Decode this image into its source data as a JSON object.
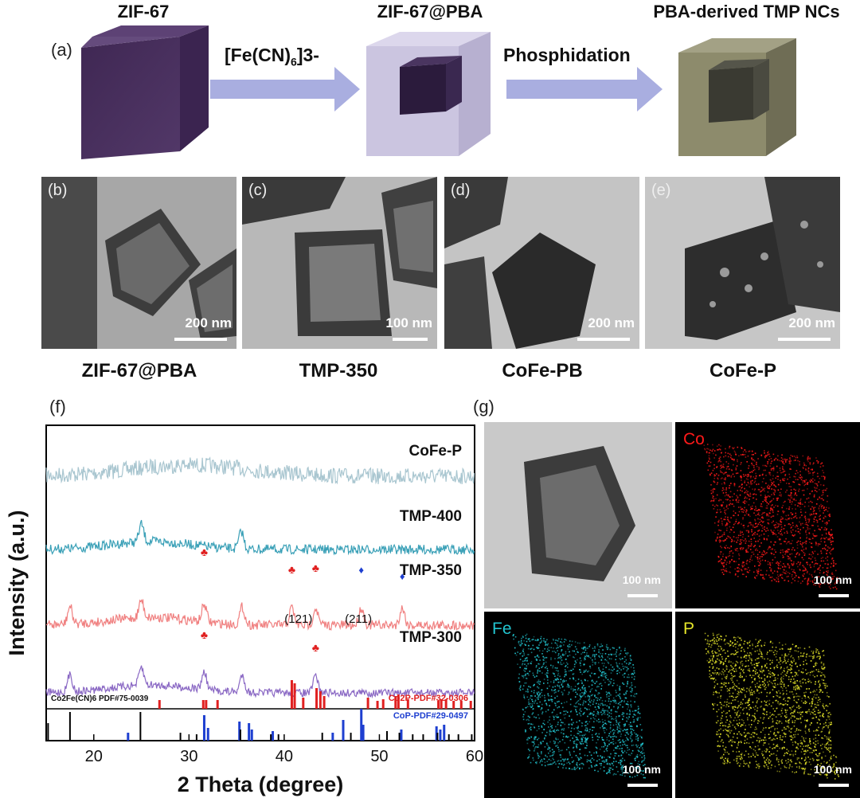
{
  "schematic": {
    "panel_label": "(a)",
    "titles": [
      "ZIF-67",
      "ZIF-67@PBA",
      "PBA-derived TMP NCs"
    ],
    "arrow1_label": "[Fe(CN)",
    "arrow1_sub": "6",
    "arrow1_sup": "]3-",
    "arrow2_label": "Phosphidation",
    "colors": {
      "zif": "#4a2f5f",
      "pba": "#c8c2de",
      "tmp": "#8d8b6c",
      "arrow": "#a9aee0"
    }
  },
  "tem_panels": [
    {
      "letter": "(b)",
      "scale": "200 nm",
      "caption": "ZIF-67@PBA"
    },
    {
      "letter": "(c)",
      "scale": "100 nm",
      "caption": "TMP-350"
    },
    {
      "letter": "(d)",
      "scale": "200 nm",
      "caption": "CoFe-PB"
    },
    {
      "letter": "(e)",
      "scale": "200 nm",
      "caption": "CoFe-P"
    }
  ],
  "xrd": {
    "panel_label": "(f)",
    "xlabel": "2 Theta (degree)",
    "ylabel": "Intensity (a.u.)",
    "xticks": [
      "20",
      "30",
      "40",
      "50",
      "60"
    ],
    "traces": [
      {
        "name": "CoFe-P",
        "color": "#a9c6d0"
      },
      {
        "name": "TMP-400",
        "color": "#3aa0b7"
      },
      {
        "name": "TMP-350",
        "color": "#f08080"
      },
      {
        "name": "TMP-300",
        "color": "#8a68c4"
      }
    ],
    "annotations": [
      "(121)",
      "(211)"
    ],
    "ref_co2fe": "Co2Fe(CN)6 PDF#75-0039",
    "ref_co2p": "Co2P-PDF#32-0306",
    "ref_cop": "CoP-PDF#29-0497"
  },
  "eds": {
    "panel_label": "(g)",
    "maps": [
      {
        "label": "",
        "scale": "100 nm",
        "color": "#777777"
      },
      {
        "label": "Co",
        "scale": "100 nm",
        "color": "#ff1a1a"
      },
      {
        "label": "Fe",
        "scale": "100 nm",
        "color": "#22c5d0"
      },
      {
        "label": "P",
        "scale": "100 nm",
        "color": "#e6e62a"
      }
    ]
  },
  "chart_data": {
    "type": "line",
    "title": "",
    "xlabel": "2 Theta (degree)",
    "ylabel": "Intensity (a.u.)",
    "xlim": [
      15,
      60
    ],
    "series": [
      {
        "name": "CoFe-P",
        "peaks": []
      },
      {
        "name": "TMP-400",
        "peaks": [
          25.0,
          35.5
        ]
      },
      {
        "name": "TMP-350",
        "peaks": [
          17.5,
          25.0,
          31.6,
          35.6,
          40.8,
          43.3,
          48.1,
          52.4
        ]
      },
      {
        "name": "TMP-300",
        "peaks": [
          17.5,
          25.0,
          31.6,
          35.6,
          43.3
        ]
      }
    ],
    "reference_lines": {
      "Co2P-PDF#32-0306": [
        26.9,
        31.5,
        31.8,
        33.0,
        40.8,
        41.1,
        42.0,
        43.4,
        43.8,
        44.2,
        48.8,
        49.8,
        50.4,
        51.7,
        52.0,
        53.0,
        56.2,
        56.5,
        57.0,
        57.8,
        58.6,
        59.6
      ],
      "CoP-PDF#29-0497": [
        23.6,
        31.6,
        32.0,
        35.3,
        36.3,
        36.6,
        38.8,
        45.1,
        46.2,
        48.1,
        48.3,
        52.3,
        56.0,
        56.4,
        56.8
      ],
      "Co2Fe(CN)6 PDF#75-0039": [
        15.2,
        17.5,
        24.9,
        29.1,
        30.8,
        35.4,
        38.6,
        39.4,
        44.0,
        47.0,
        50.8,
        52.1,
        53.5,
        54.6,
        56.1,
        57.3,
        58.3,
        59.7
      ]
    }
  }
}
